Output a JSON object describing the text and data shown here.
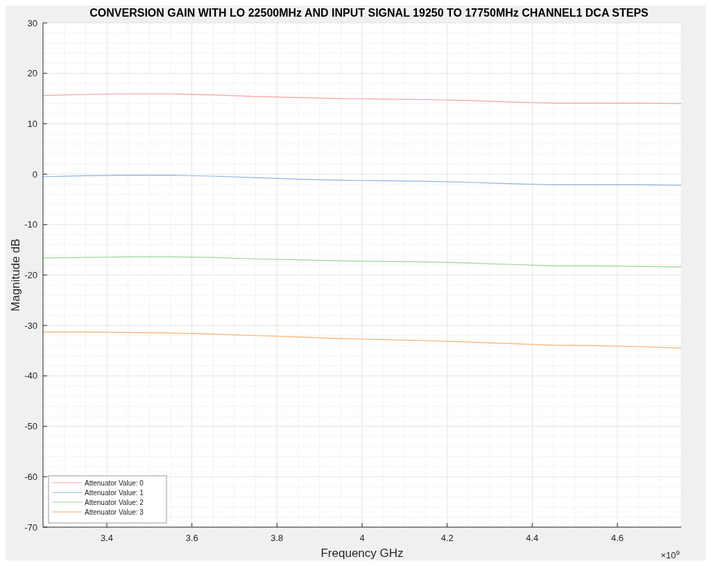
{
  "chart_data": {
    "type": "line",
    "title": "CONVERSION GAIN WITH LO 22500MHz AND INPUT SIGNAL 19250 TO 17750MHz CHANNEL1 DCA STEPS",
    "xlabel": "Frequency GHz",
    "ylabel": "Magnitude dB",
    "x": [
      3.25,
      3.35,
      3.45,
      3.55,
      3.65,
      3.75,
      3.85,
      3.95,
      4.05,
      4.15,
      4.25,
      4.35,
      4.45,
      4.55,
      4.65,
      4.75
    ],
    "series": [
      {
        "name": "Attenuator Value: 0",
        "color": "#f2a0a6",
        "values": [
          15.6,
          15.8,
          15.9,
          15.9,
          15.7,
          15.4,
          15.2,
          15.0,
          14.9,
          14.8,
          14.6,
          14.3,
          14.1,
          14.1,
          14.1,
          14.0
        ]
      },
      {
        "name": "Attenuator Value: 1",
        "color": "#8db2dc",
        "values": [
          -0.5,
          -0.3,
          -0.2,
          -0.2,
          -0.4,
          -0.7,
          -1.0,
          -1.2,
          -1.3,
          -1.4,
          -1.6,
          -1.9,
          -2.1,
          -2.1,
          -2.1,
          -2.2
        ]
      },
      {
        "name": "Attenuator Value: 2",
        "color": "#9cd39c",
        "values": [
          -16.6,
          -16.5,
          -16.4,
          -16.4,
          -16.5,
          -16.8,
          -17.0,
          -17.2,
          -17.3,
          -17.4,
          -17.6,
          -17.9,
          -18.2,
          -18.2,
          -18.3,
          -18.4
        ]
      },
      {
        "name": "Attenuator Value: 3",
        "color": "#f7ae6a",
        "values": [
          -31.3,
          -31.3,
          -31.4,
          -31.5,
          -31.7,
          -32.0,
          -32.3,
          -32.6,
          -32.8,
          -33.0,
          -33.3,
          -33.6,
          -33.9,
          -34.0,
          -34.2,
          -34.5
        ]
      }
    ],
    "xlim": [
      3.25,
      4.75
    ],
    "xticks": [
      3.4,
      3.6,
      3.8,
      4,
      4.2,
      4.4,
      4.6
    ],
    "ylim": [
      -70,
      30
    ],
    "yticks": [
      -70,
      -60,
      -50,
      -40,
      -30,
      -20,
      -10,
      0,
      10,
      20,
      30
    ],
    "annotations": [
      "×10$^{9}$"
    ],
    "grid": true,
    "legend": "bottom left",
    "line_style": "solid"
  }
}
